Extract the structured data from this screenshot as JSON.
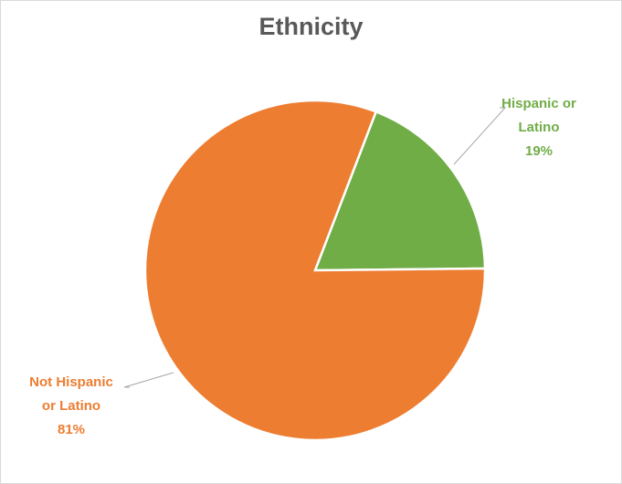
{
  "chart_data": {
    "type": "pie",
    "title": "Ethnicity",
    "slices": [
      {
        "label_lines": [
          "Hispanic or",
          "Latino"
        ],
        "percent_label": "19%",
        "value": 19,
        "color": "#70ad47"
      },
      {
        "label_lines": [
          "Not Hispanic",
          "or Latino"
        ],
        "percent_label": "81%",
        "value": 81,
        "color": "#ed7d31"
      }
    ],
    "legend": "none",
    "data_labels": "outside with leader lines"
  }
}
